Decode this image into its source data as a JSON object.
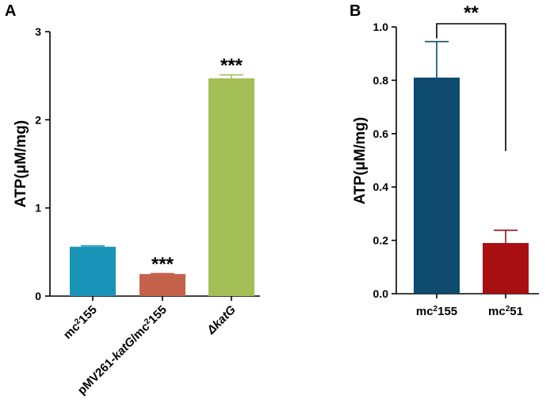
{
  "chart_data": [
    {
      "panel": "A",
      "type": "bar",
      "ylabel": "ATP(μM/mg)",
      "ylim": [
        0,
        3
      ],
      "yticks": [
        "0",
        "1",
        "2",
        "3"
      ],
      "categories": [
        {
          "parts": [
            {
              "t": "mc"
            },
            {
              "t": "2",
              "sup": true
            },
            {
              "t": "155"
            }
          ]
        },
        {
          "parts": [
            {
              "t": "pMV261-"
            },
            {
              "t": "katG",
              "italic": true
            },
            {
              "t": "/mc"
            },
            {
              "t": "2",
              "sup": true
            },
            {
              "t": "155"
            }
          ]
        },
        {
          "parts": [
            {
              "t": "Δ",
              "italic": true
            },
            {
              "t": "katG",
              "italic": true
            }
          ]
        }
      ],
      "values": [
        0.56,
        0.25,
        2.47
      ],
      "errors": [
        0.01,
        0.005,
        0.04
      ],
      "colors": [
        "#1a93b8",
        "#c4614a",
        "#a3bf55"
      ],
      "significance": [
        "",
        "***",
        "***"
      ]
    },
    {
      "panel": "B",
      "type": "bar",
      "ylabel": "ATP(μM/mg)",
      "ylim": [
        0,
        1.0
      ],
      "yticks": [
        "0.0",
        "0.2",
        "0.4",
        "0.6",
        "0.8",
        "1.0"
      ],
      "categories": [
        {
          "parts": [
            {
              "t": "mc"
            },
            {
              "t": "2",
              "sup": true
            },
            {
              "t": "155"
            }
          ]
        },
        {
          "parts": [
            {
              "t": "mc"
            },
            {
              "t": "2",
              "sup": true
            },
            {
              "t": "51"
            }
          ]
        }
      ],
      "values": [
        0.81,
        0.19
      ],
      "errors": [
        0.135,
        0.048
      ],
      "colors": [
        "#0d4a6e",
        "#a80f12"
      ],
      "comparison": {
        "label": "**",
        "between": [
          0,
          1
        ]
      }
    }
  ]
}
